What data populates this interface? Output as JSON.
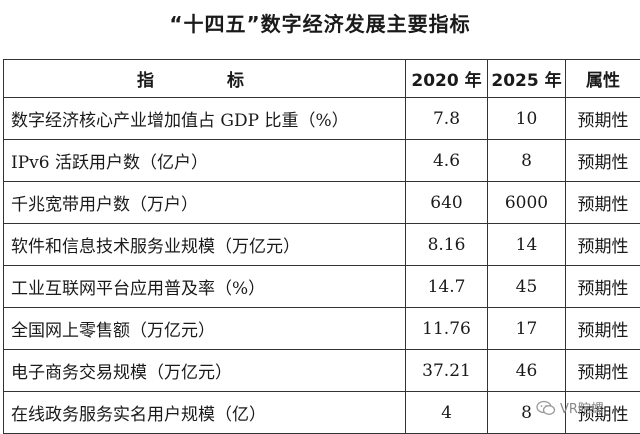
{
  "title": "“十四五”数字经济发展主要指标",
  "headers": {
    "indicator": "指　标",
    "y2020": "2020 年",
    "y2025": "2025 年",
    "attr": "属性"
  },
  "rows": [
    {
      "indicator": "数字经济核心产业增加值占 GDP 比重（%）",
      "y2020": "7.8",
      "y2025": "10",
      "attr": "预期性"
    },
    {
      "indicator": "IPv6 活跃用户数（亿户）",
      "y2020": "4.6",
      "y2025": "8",
      "attr": "预期性"
    },
    {
      "indicator": "千兆宽带用户数（万户）",
      "y2020": "640",
      "y2025": "6000",
      "attr": "预期性"
    },
    {
      "indicator": "软件和信息技术服务业规模（万亿元）",
      "y2020": "8.16",
      "y2025": "14",
      "attr": "预期性"
    },
    {
      "indicator": "工业互联网平台应用普及率（%）",
      "y2020": "14.7",
      "y2025": "45",
      "attr": "预期性"
    },
    {
      "indicator": "全国网上零售额（万亿元）",
      "y2020": "11.76",
      "y2025": "17",
      "attr": "预期性"
    },
    {
      "indicator": "电子商务交易规模（万亿元）",
      "y2020": "37.21",
      "y2025": "46",
      "attr": "预期性"
    },
    {
      "indicator": "在线政务服务实名用户规模（亿）",
      "y2020": "4",
      "y2025": "8",
      "attr": "预期性"
    }
  ],
  "watermark": {
    "icon": "wechat-icon",
    "text": "VR陀螺"
  }
}
